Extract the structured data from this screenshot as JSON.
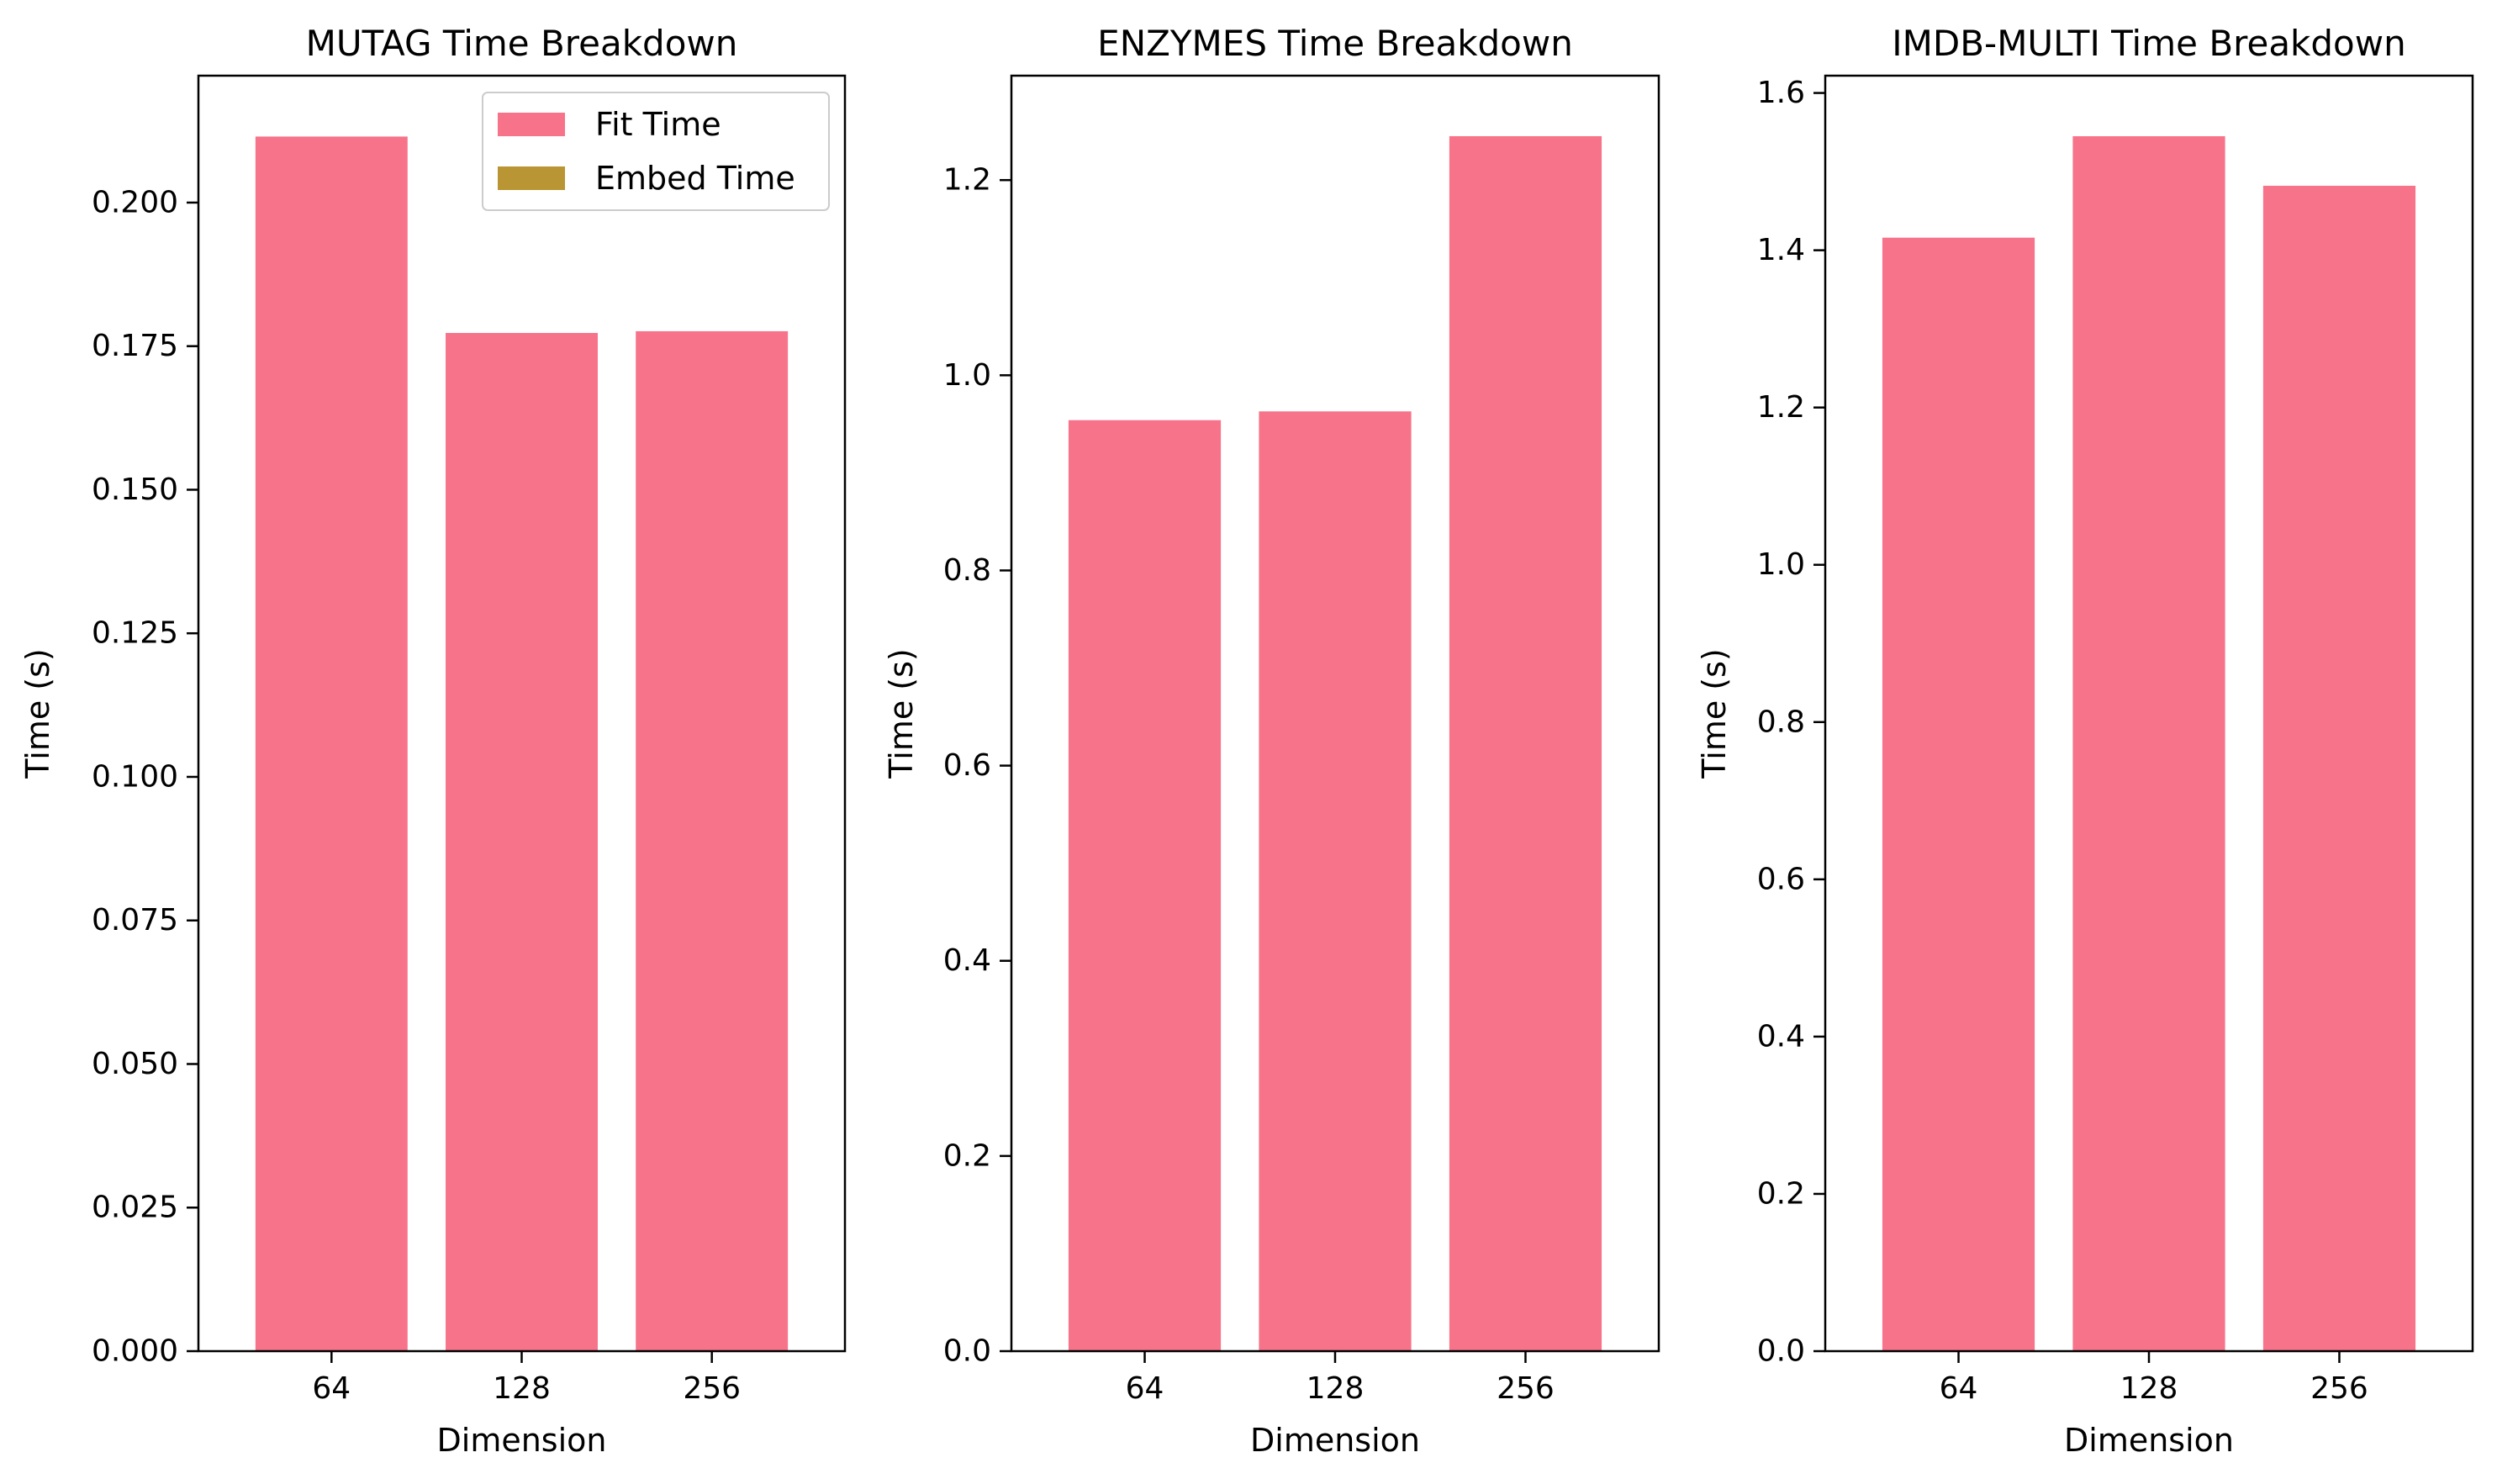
{
  "chart_data": [
    {
      "type": "bar",
      "title": "MUTAG Time Breakdown",
      "xlabel": "Dimension",
      "ylabel": "Time (s)",
      "categories": [
        "64",
        "128",
        "256"
      ],
      "series": [
        {
          "name": "Fit Time",
          "values": [
            0.2115,
            0.1773,
            0.1776
          ]
        },
        {
          "name": "Embed Time",
          "values": [
            0.0,
            0.0,
            0.0
          ]
        }
      ],
      "ylim": [
        0,
        0.2221
      ],
      "yticks": [
        0.0,
        0.025,
        0.05,
        0.075,
        0.1,
        0.125,
        0.15,
        0.175,
        0.2
      ],
      "ytick_labels": [
        "0.000",
        "0.025",
        "0.050",
        "0.075",
        "0.100",
        "0.125",
        "0.150",
        "0.175",
        "0.200"
      ],
      "legend": "upper-right",
      "grid": false
    },
    {
      "type": "bar",
      "title": "ENZYMES Time Breakdown",
      "xlabel": "Dimension",
      "ylabel": "Time (s)",
      "categories": [
        "64",
        "128",
        "256"
      ],
      "series": [
        {
          "name": "Fit Time",
          "values": [
            0.954,
            0.963,
            1.245
          ]
        },
        {
          "name": "Embed Time",
          "values": [
            0.0,
            0.0,
            0.0
          ]
        }
      ],
      "ylim": [
        0,
        1.307
      ],
      "yticks": [
        0.0,
        0.2,
        0.4,
        0.6,
        0.8,
        1.0,
        1.2
      ],
      "ytick_labels": [
        "0.0",
        "0.2",
        "0.4",
        "0.6",
        "0.8",
        "1.0",
        "1.2"
      ],
      "grid": false
    },
    {
      "type": "bar",
      "title": "IMDB-MULTI Time Breakdown",
      "xlabel": "Dimension",
      "ylabel": "Time (s)",
      "categories": [
        "64",
        "128",
        "256"
      ],
      "series": [
        {
          "name": "Fit Time",
          "values": [
            1.416,
            1.545,
            1.482
          ]
        },
        {
          "name": "Embed Time",
          "values": [
            0.0,
            0.0,
            0.0
          ]
        }
      ],
      "ylim": [
        0,
        1.622
      ],
      "yticks": [
        0.0,
        0.2,
        0.4,
        0.6,
        0.8,
        1.0,
        1.2,
        1.4,
        1.6
      ],
      "ytick_labels": [
        "0.0",
        "0.2",
        "0.4",
        "0.6",
        "0.8",
        "1.0",
        "1.2",
        "1.4",
        "1.6"
      ],
      "grid": false
    }
  ],
  "colors": {
    "fit": "#f7738a",
    "embed": "#b99633"
  }
}
